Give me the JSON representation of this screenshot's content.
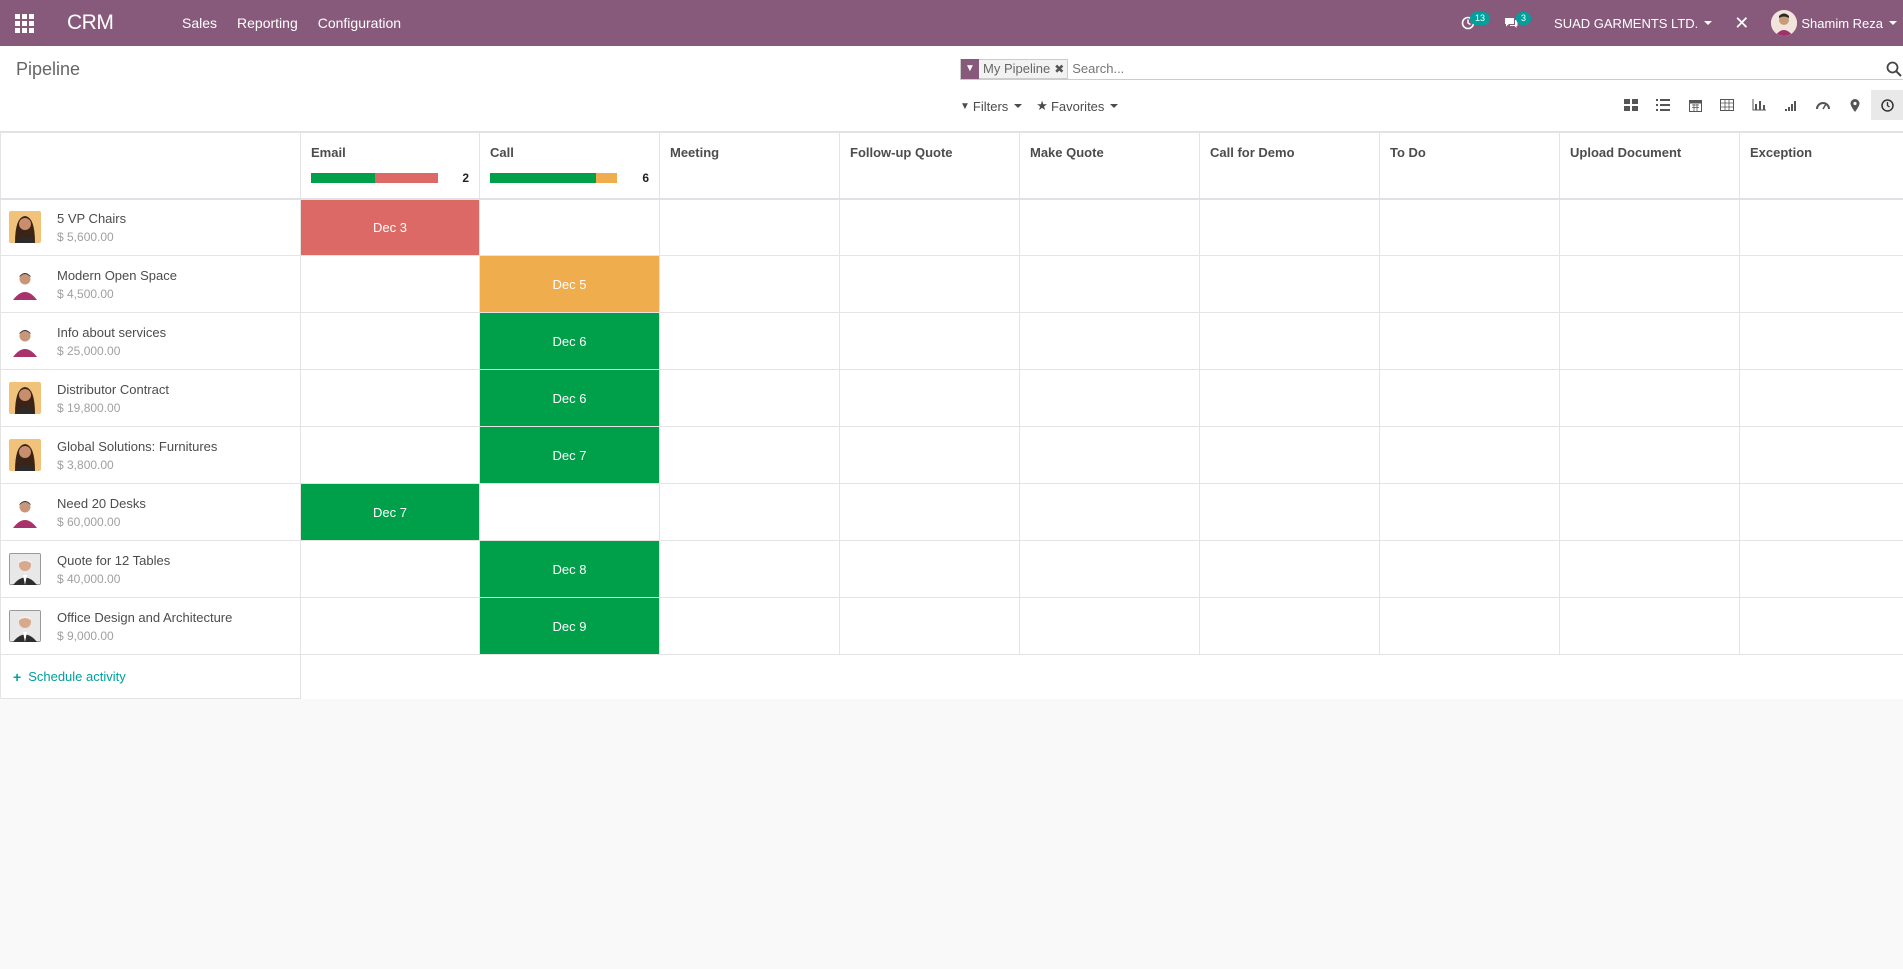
{
  "navbar": {
    "app_name": "CRM",
    "menu": [
      "Sales",
      "Reporting",
      "Configuration"
    ],
    "activity_count": "13",
    "message_count": "3",
    "company": "SUAD GARMENTS LTD.",
    "user": "Shamim Reza",
    "bg_color": "#875a7b"
  },
  "control": {
    "breadcrumb": "Pipeline",
    "facet": "My Pipeline",
    "search_placeholder": "Search...",
    "filters_label": "Filters",
    "favorites_label": "Favorites",
    "views": [
      "kanban-icon",
      "list-icon",
      "calendar-icon",
      "pivot-icon",
      "graph-icon",
      "cohort-icon",
      "dashboard-icon",
      "map-icon",
      "activity-icon"
    ],
    "active_view": "activity-icon"
  },
  "columns": [
    {
      "name": "Email",
      "count": "2",
      "progress": [
        {
          "color": "#00a04a",
          "pct": 50
        },
        {
          "color": "#dc6965",
          "pct": 50
        }
      ]
    },
    {
      "name": "Call",
      "count": "6",
      "progress": [
        {
          "color": "#00a04a",
          "pct": 83.3
        },
        {
          "color": "#f0ad4e",
          "pct": 16.7
        }
      ]
    },
    {
      "name": "Meeting"
    },
    {
      "name": "Follow-up Quote"
    },
    {
      "name": "Make Quote"
    },
    {
      "name": "Call for Demo"
    },
    {
      "name": "To Do"
    },
    {
      "name": "Upload Document"
    },
    {
      "name": "Exception"
    }
  ],
  "records": [
    {
      "name": "5 VP Chairs",
      "amount": "$ 5,600.00",
      "avatar": "woman",
      "col": 0,
      "date": "Dec 3",
      "state": "overdue"
    },
    {
      "name": "Modern Open Space",
      "amount": "$ 4,500.00",
      "avatar": "man",
      "col": 1,
      "date": "Dec 5",
      "state": "today"
    },
    {
      "name": "Info about services",
      "amount": "$ 25,000.00",
      "avatar": "man",
      "col": 1,
      "date": "Dec 6",
      "state": "planned"
    },
    {
      "name": "Distributor Contract",
      "amount": "$ 19,800.00",
      "avatar": "woman",
      "col": 1,
      "date": "Dec 6",
      "state": "planned"
    },
    {
      "name": "Global Solutions: Furnitures",
      "amount": "$ 3,800.00",
      "avatar": "woman",
      "col": 1,
      "date": "Dec 7",
      "state": "planned"
    },
    {
      "name": "Need 20 Desks",
      "amount": "$ 60,000.00",
      "avatar": "man",
      "col": 0,
      "date": "Dec 7",
      "state": "planned"
    },
    {
      "name": "Quote for 12 Tables",
      "amount": "$ 40,000.00",
      "avatar": "old-man",
      "col": 1,
      "date": "Dec 8",
      "state": "planned"
    },
    {
      "name": "Office Design and Architecture",
      "amount": "$ 9,000.00",
      "avatar": "old-man",
      "col": 1,
      "date": "Dec 9",
      "state": "planned"
    }
  ],
  "footer": {
    "schedule_label": "Schedule activity"
  }
}
